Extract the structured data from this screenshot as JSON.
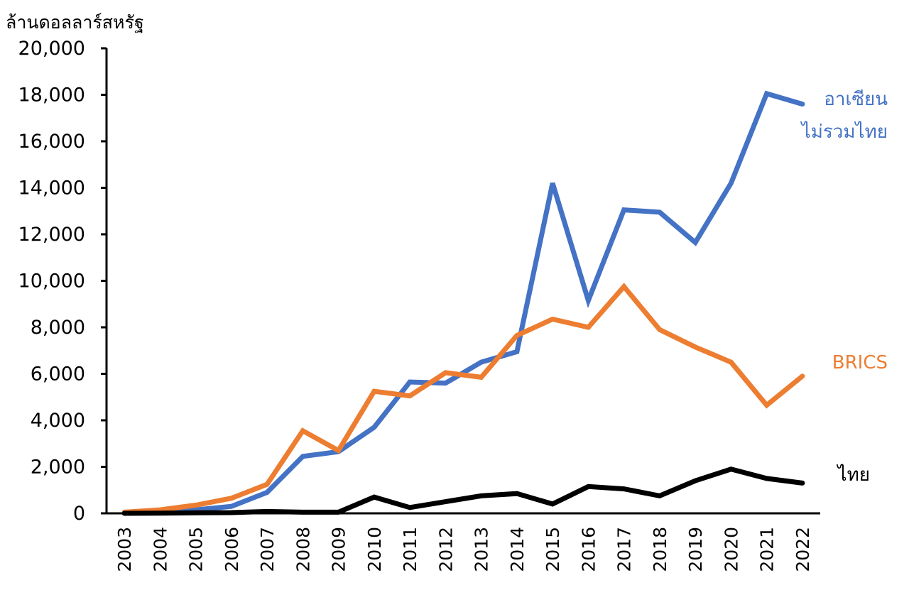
{
  "chart_data": {
    "type": "line",
    "title": "",
    "xlabel": "",
    "ylabel": "ล้านดอลลาร์สหรัฐ",
    "ylim": [
      0,
      20000
    ],
    "yticks": [
      "0",
      "2,000",
      "4,000",
      "6,000",
      "8,000",
      "10,000",
      "12,000",
      "14,000",
      "16,000",
      "18,000",
      "20,000"
    ],
    "ytick_values": [
      0,
      2000,
      4000,
      6000,
      8000,
      10000,
      12000,
      14000,
      16000,
      18000,
      20000
    ],
    "categories": [
      "2003",
      "2004",
      "2005",
      "2006",
      "2007",
      "2008",
      "2009",
      "2010",
      "2011",
      "2012",
      "2013",
      "2014",
      "2015",
      "2016",
      "2017",
      "2018",
      "2019",
      "2020",
      "2021",
      "2022"
    ],
    "grid": false,
    "legend": "direct labels at right",
    "series": [
      {
        "name": "อาเซียน ไม่รวมไทย",
        "label_lines": [
          "อาเซียน",
          "ไม่รวมไทย"
        ],
        "color": "#4472C4",
        "values": [
          30,
          80,
          150,
          300,
          900,
          2450,
          2650,
          3700,
          5650,
          5600,
          6500,
          6950,
          14200,
          9150,
          13050,
          12950,
          11650,
          14200,
          18050,
          17600
        ]
      },
      {
        "name": "BRICS",
        "label_lines": [
          "BRICS"
        ],
        "color": "#ED7D31",
        "values": [
          50,
          150,
          350,
          650,
          1250,
          3550,
          2700,
          5250,
          5050,
          6050,
          5850,
          7650,
          8350,
          8000,
          9750,
          7900,
          7150,
          6500,
          4650,
          5900
        ]
      },
      {
        "name": "ไทย",
        "label_lines": [
          "ไทย"
        ],
        "color": "#000000",
        "values": [
          0,
          10,
          20,
          30,
          80,
          50,
          50,
          700,
          250,
          500,
          750,
          850,
          400,
          1150,
          1050,
          750,
          1400,
          1900,
          1500,
          1300
        ]
      }
    ]
  }
}
